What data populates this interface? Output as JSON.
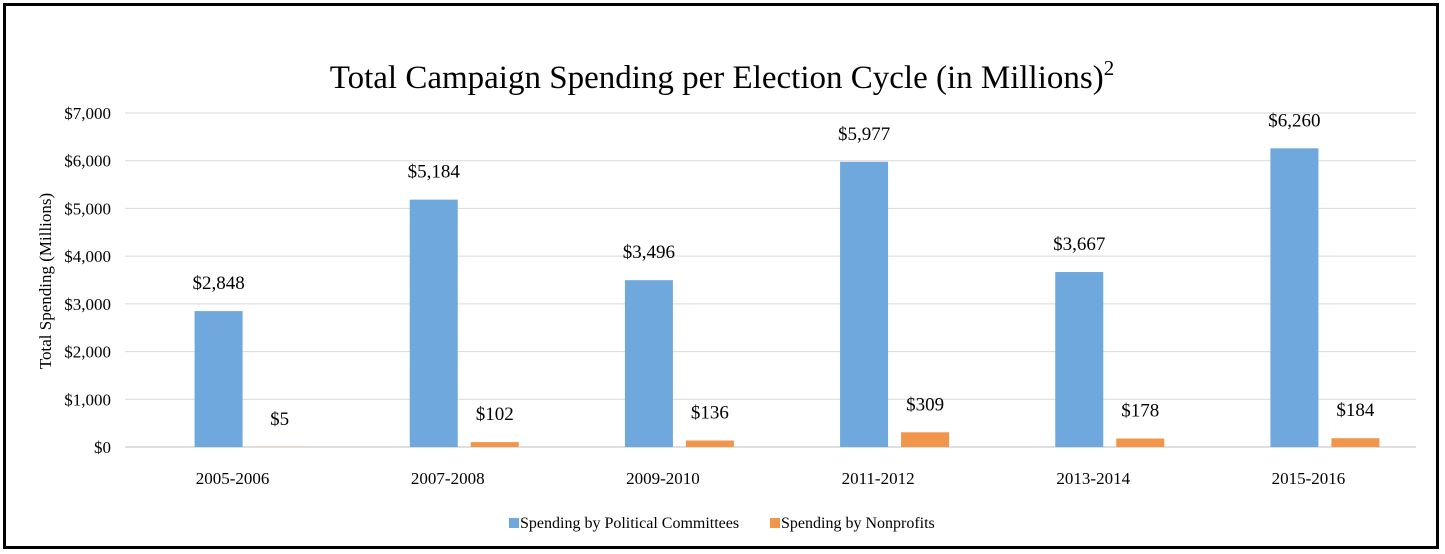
{
  "chart_data": {
    "type": "bar",
    "title": "Total Campaign Spending per Election Cycle (in Millions)",
    "title_superscript": "2",
    "xlabel": "",
    "ylabel": "Total Spending (Millions)",
    "ylim": [
      0,
      7000
    ],
    "yticks": [
      0,
      1000,
      2000,
      3000,
      4000,
      5000,
      6000,
      7000
    ],
    "ytick_labels": [
      "$0",
      "$1,000",
      "$2,000",
      "$3,000",
      "$4,000",
      "$5,000",
      "$6,000",
      "$7,000"
    ],
    "grid": true,
    "legend_position": "bottom",
    "categories": [
      "2005-2006",
      "2007-2008",
      "2009-2010",
      "2011-2012",
      "2013-2014",
      "2015-2016"
    ],
    "series": [
      {
        "name": "Spending by Political Committees",
        "color": "#6fa8dc",
        "values": [
          2848,
          5184,
          3496,
          5977,
          3667,
          6260
        ],
        "labels": [
          "$2,848",
          "$5,184",
          "$3,496",
          "$5,977",
          "$3,667",
          "$6,260"
        ]
      },
      {
        "name": "Spending by Nonprofits",
        "color": "#f0954a",
        "values": [
          5,
          102,
          136,
          309,
          178,
          184
        ],
        "labels": [
          "$5",
          "$102",
          "$136",
          "$309",
          "$178",
          "$184"
        ]
      }
    ]
  }
}
